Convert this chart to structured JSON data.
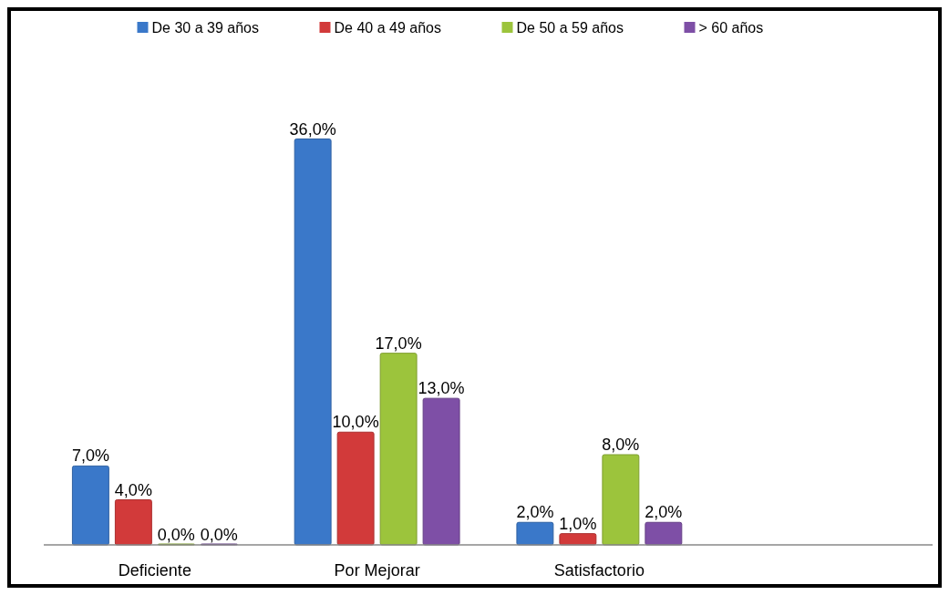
{
  "chart_data": {
    "type": "bar",
    "categories": [
      "Deficiente",
      "Por Mejorar",
      "Satisfactorio",
      null
    ],
    "series": [
      {
        "name": "De 30 a 39 años",
        "color": "#3a78c9",
        "values": [
          7,
          36,
          2,
          null
        ],
        "value_labels": [
          "7,0%",
          "36,0%",
          "2,0%",
          null
        ]
      },
      {
        "name": "De 40 a 49 años",
        "color": "#d23a3a",
        "values": [
          4,
          10,
          1,
          null
        ],
        "value_labels": [
          "4,0%",
          "10,0%",
          "1,0%",
          null
        ]
      },
      {
        "name": "De 50 a 59 años",
        "color": "#9cc43c",
        "values": [
          0,
          17,
          8,
          null
        ],
        "value_labels": [
          "0,0%",
          "17,0%",
          "8,0%",
          null
        ]
      },
      {
        "name": "> 60 años",
        "color": "#7e4fa6",
        "values": [
          0,
          13,
          2,
          null
        ],
        "value_labels": [
          "0,0%",
          "13,0%",
          "2,0%",
          null
        ]
      }
    ],
    "legend": "top"
  }
}
